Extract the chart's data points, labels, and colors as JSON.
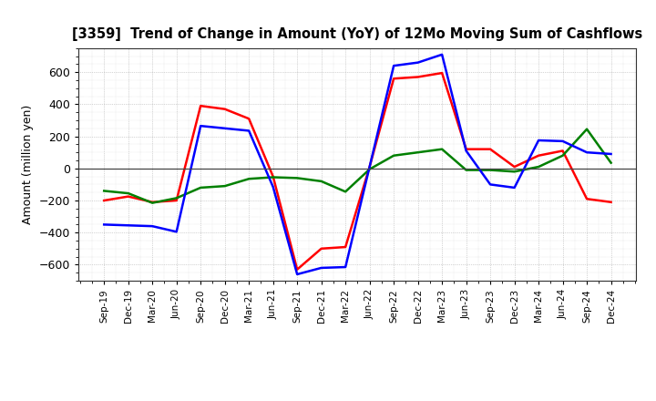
{
  "title": "[3359]  Trend of Change in Amount (YoY) of 12Mo Moving Sum of Cashflows",
  "ylabel": "Amount (million yen)",
  "x_labels": [
    "Sep-19",
    "Dec-19",
    "Mar-20",
    "Jun-20",
    "Sep-20",
    "Dec-20",
    "Mar-21",
    "Jun-21",
    "Sep-21",
    "Dec-21",
    "Mar-22",
    "Jun-22",
    "Sep-22",
    "Dec-22",
    "Mar-23",
    "Jun-23",
    "Sep-23",
    "Dec-23",
    "Mar-24",
    "Jun-24",
    "Sep-24",
    "Dec-24"
  ],
  "operating_cashflow": [
    -200,
    -175,
    -210,
    -200,
    390,
    370,
    310,
    -50,
    -630,
    -500,
    -490,
    10,
    560,
    570,
    595,
    120,
    120,
    10,
    80,
    110,
    -190,
    -210
  ],
  "investing_cashflow": [
    -140,
    -155,
    -215,
    -185,
    -120,
    -110,
    -65,
    -55,
    -60,
    -80,
    -145,
    -5,
    80,
    100,
    120,
    -10,
    -10,
    -20,
    10,
    80,
    245,
    35
  ],
  "free_cashflow": [
    -350,
    -355,
    -360,
    -395,
    265,
    250,
    235,
    -115,
    -660,
    -620,
    -615,
    10,
    640,
    660,
    710,
    110,
    -100,
    -120,
    175,
    170,
    100,
    90
  ],
  "operating_color": "#ff0000",
  "investing_color": "#008000",
  "free_color": "#0000ff",
  "ylim": [
    -700,
    750
  ],
  "yticks": [
    -600,
    -400,
    -200,
    0,
    200,
    400,
    600
  ],
  "background_color": "#ffffff",
  "grid_color": "#999999",
  "linewidth": 1.8
}
